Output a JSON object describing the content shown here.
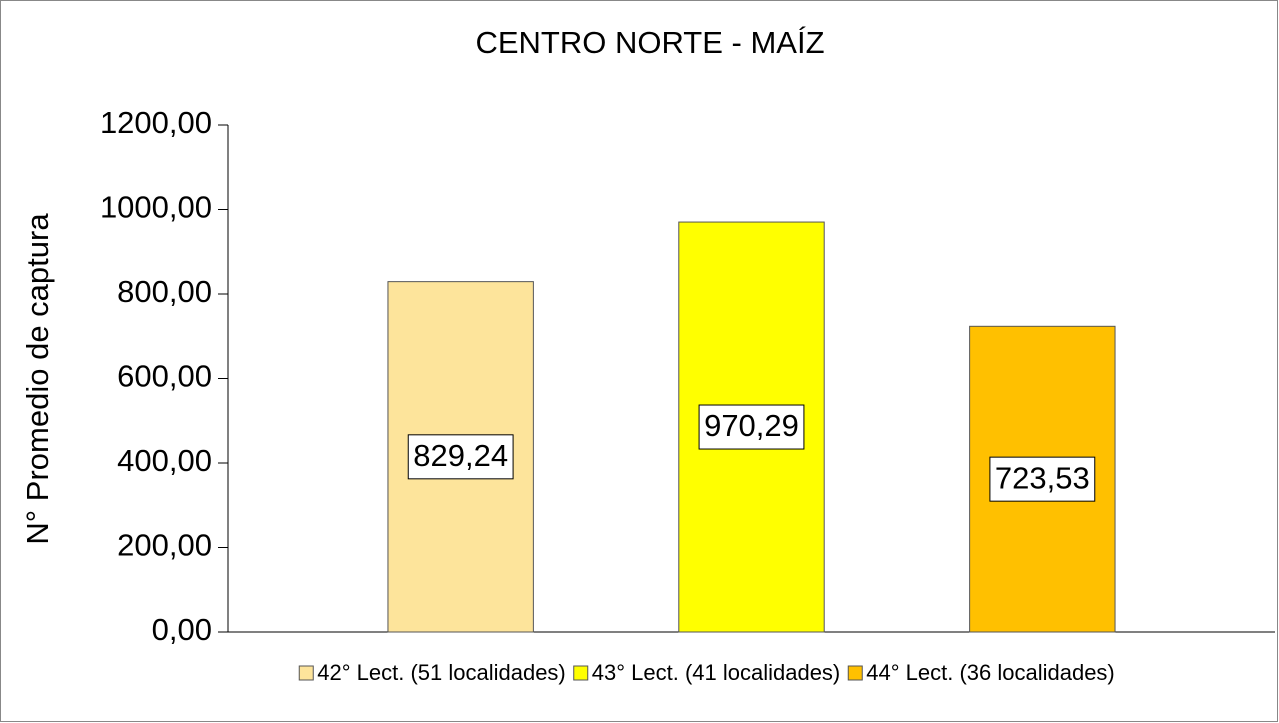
{
  "chart_data": {
    "type": "bar",
    "title": "CENTRO NORTE - MAÍZ",
    "y_label": "N° Promedio de captura",
    "categories": [
      null
    ],
    "series": [
      {
        "name": "42° Lect. (51 localidades)",
        "color": "#fde49b",
        "values": [
          829.24
        ],
        "value_labels": [
          "829,24"
        ]
      },
      {
        "name": "43° Lect. (41 localidades)",
        "color": "#ffff00",
        "values": [
          970.29
        ],
        "value_labels": [
          "970,29"
        ]
      },
      {
        "name": "44° Lect. (36 localidades)",
        "color": "#ffc000",
        "values": [
          723.53
        ],
        "value_labels": [
          "723,53"
        ]
      }
    ],
    "ylim": [
      0,
      1200
    ],
    "yticks": [
      {
        "value": 0,
        "label": "0,00"
      },
      {
        "value": 200,
        "label": "200,00"
      },
      {
        "value": 400,
        "label": "400,00"
      },
      {
        "value": 600,
        "label": "600,00"
      },
      {
        "value": 800,
        "label": "800,00"
      },
      {
        "value": 1000,
        "label": "1000,00"
      },
      {
        "value": 1200,
        "label": "1200,00"
      }
    ],
    "grid": false,
    "legend": "bottom"
  }
}
